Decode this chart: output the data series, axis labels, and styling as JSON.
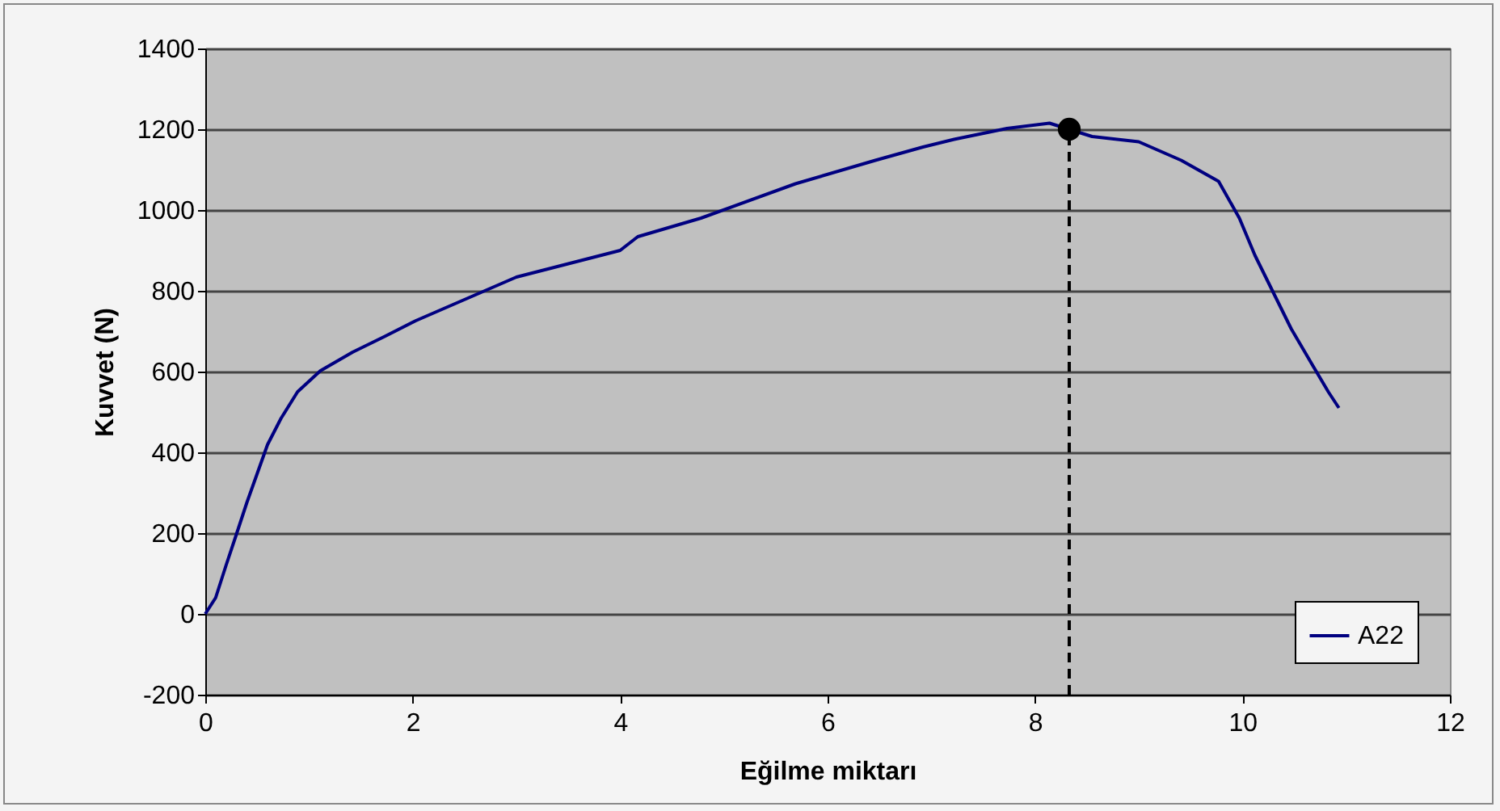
{
  "chart_data": {
    "type": "line",
    "xlabel": "Eğilme miktarı",
    "ylabel": "Kuvvet (N)",
    "xlim": [
      0,
      12
    ],
    "xticks": [
      0,
      2,
      4,
      6,
      8,
      10,
      12
    ],
    "ylim": [
      -200,
      1400
    ],
    "yticks": [
      -200,
      0,
      200,
      400,
      600,
      800,
      1000,
      1200,
      1400
    ],
    "grid": "y",
    "legend": "bottom right",
    "series": [
      {
        "name": "A22",
        "color": "#000080",
        "x": [
          0,
          0.1,
          0.2,
          0.3,
          0.4,
          0.5,
          0.6,
          0.73,
          0.89,
          1.11,
          1.42,
          1.73,
          2.03,
          3,
          4,
          4.17,
          4.78,
          5.69,
          6.46,
          6.92,
          7.22,
          7.73,
          8.14,
          8.55,
          9.0,
          9.41,
          9.77,
          9.97,
          10.12,
          10.32,
          10.47,
          10.68,
          10.83,
          10.93
        ],
        "values": [
          0,
          40,
          120,
          197,
          275,
          347,
          419,
          484,
          550,
          602,
          648,
          687,
          726,
          834,
          900,
          934,
          980,
          1065,
          1123,
          1156,
          1175,
          1202,
          1215,
          1182,
          1169,
          1123,
          1071,
          980,
          888,
          784,
          706,
          614,
          549,
          510
        ]
      },
      {
        "type": "line",
        "line_style": "dashed",
        "color": "#000000",
        "x": [
          8.33,
          8.33
        ],
        "values": [
          -200,
          1200
        ]
      },
      {
        "type": "scatter",
        "marker": "circle",
        "color": "#000000",
        "x": [
          8.33
        ],
        "values": [
          1200
        ]
      }
    ]
  }
}
